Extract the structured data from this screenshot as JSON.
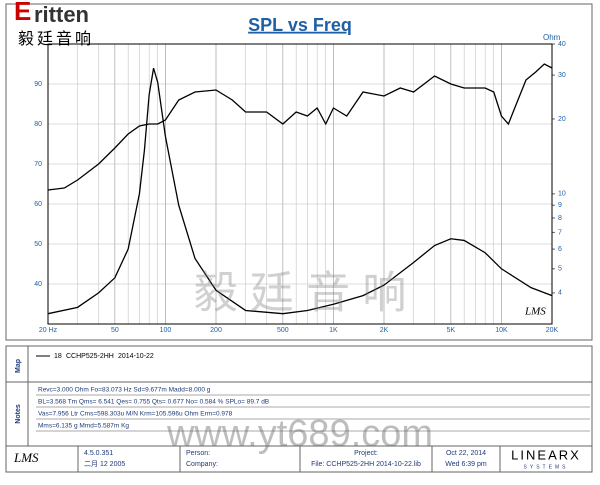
{
  "header": {
    "logo": "ritten",
    "logo_cn": "毅廷音响"
  },
  "chart_data": {
    "type": "line",
    "title": "SPL vs Freq",
    "y2_label": "Ohm",
    "xscale": "log",
    "y2scale": "log",
    "grid": true,
    "xlim": [
      20,
      20000
    ],
    "ylim": [
      30,
      100
    ],
    "y2lim": [
      3,
      40
    ],
    "xticks": [
      {
        "value": 20,
        "label": "20 Hz"
      },
      50,
      100,
      200,
      500,
      {
        "value": 1000,
        "label": "1K"
      },
      {
        "value": 2000,
        "label": "2K"
      },
      {
        "value": 5000,
        "label": "5K"
      },
      {
        "value": 10000,
        "label": "10K"
      },
      {
        "value": 20000,
        "label": "20K"
      }
    ],
    "yticks": [
      40,
      50,
      60,
      70,
      80,
      90
    ],
    "y2ticks": [
      4,
      5,
      6,
      7,
      8,
      9,
      10,
      20,
      30,
      40
    ],
    "series": [
      {
        "color": "#000000",
        "x": [
          20,
          25,
          30,
          40,
          50,
          60,
          70,
          80,
          90,
          100,
          120,
          150,
          200,
          250,
          300,
          400,
          500,
          600,
          700,
          800,
          900,
          1000,
          1200,
          1500,
          2000,
          2500,
          3000,
          4000,
          5000,
          6000,
          7000,
          8000,
          9000,
          10000,
          11000,
          12000,
          14000,
          16000,
          18000,
          20000
        ],
        "values": [
          63.5,
          64,
          66,
          70,
          74,
          77.5,
          79.5,
          80,
          80,
          81,
          86,
          88,
          88.5,
          86,
          83,
          83,
          80,
          83,
          82,
          84,
          80,
          84,
          82,
          88,
          87,
          89,
          88,
          92,
          90,
          89,
          89,
          89,
          88,
          82,
          80,
          84,
          91,
          93,
          95,
          94
        ]
      },
      {
        "color": "#000000",
        "axis": "y2",
        "x": [
          20,
          30,
          40,
          50,
          60,
          70,
          75,
          80,
          85,
          90,
          100,
          120,
          150,
          200,
          300,
          500,
          700,
          1000,
          1500,
          2000,
          3000,
          4000,
          5000,
          6000,
          8000,
          10000,
          15000,
          20000
        ],
        "values": [
          3.3,
          3.5,
          4,
          4.6,
          6,
          10,
          15,
          25,
          32,
          28,
          17,
          9,
          5.5,
          4.1,
          3.4,
          3.3,
          3.4,
          3.6,
          3.9,
          4.3,
          5.3,
          6.2,
          6.6,
          6.5,
          5.8,
          5,
          4.2,
          3.9
        ]
      }
    ],
    "brand": "LMS"
  },
  "map": {
    "section": "Map",
    "entry": "18",
    "name": "CCHP525-2HH",
    "date": "2014-10-22"
  },
  "notes": {
    "section": "Notes",
    "lines": [
      "Revc=3.000 Ohm  Fo=83.073 Hz  Sd=9.677m  Madd=8.000 g",
      "BL=3.568 Tm  Qms= 6.541  Qes= 0.755  Qts= 0.677  No= 0.584 %  SPLo= 89.7 dB",
      "Vas=7.956 Ltr  Cms=598.303u M/N  Krm=105.596u Ohm  Erm=0.978",
      "Mms=6.135 g  Mmd=5.587m Kg"
    ]
  },
  "footer": {
    "logo": "LMS",
    "version": "4.5.0.351",
    "build": "二月 12 2005",
    "person": "Person:",
    "company": "Company:",
    "project": "Project:",
    "file": "File: CCHP525-2HH   2014-10-22.lib",
    "date": "Oct 22, 2014",
    "time": "Wed  6:39 pm",
    "brand": "LINEARX",
    "brand_sub": "SYSTEMS"
  },
  "watermark": {
    "cn": "毅 廷 音 响",
    "url": "www.yt689.com"
  }
}
